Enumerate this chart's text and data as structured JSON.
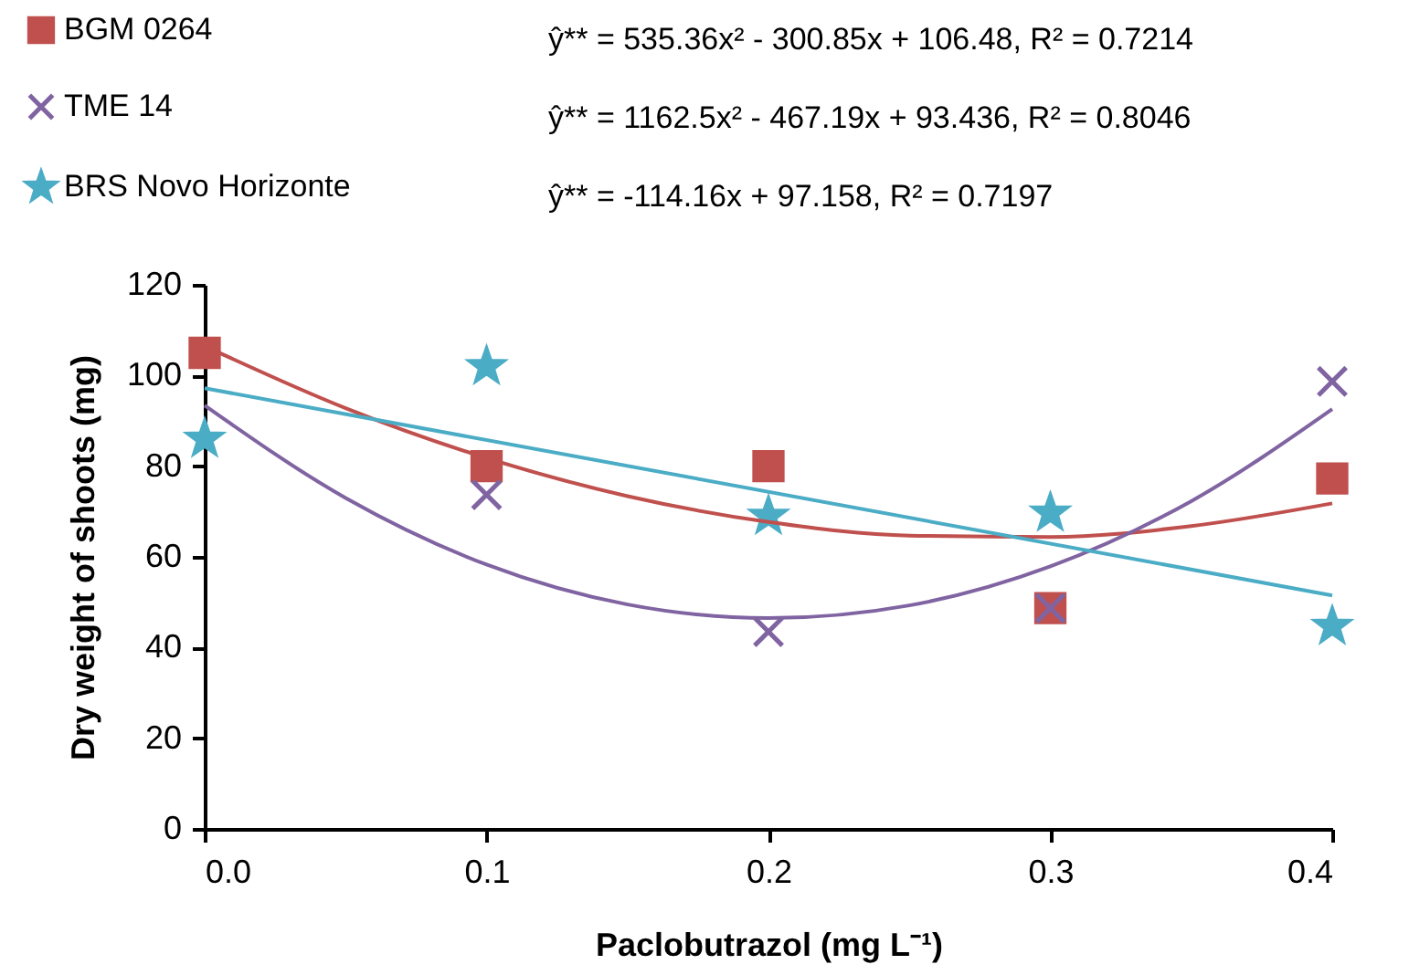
{
  "chart_data": {
    "type": "scatter",
    "xlabel": "Paclobutrazol (mg L⁻¹)",
    "ylabel": "Dry weight of shoots (mg)",
    "x": [
      0,
      0.1,
      0.2,
      0.3,
      0.4
    ],
    "xlim": [
      0,
      0.4
    ],
    "xticks": [
      {
        "value": 0,
        "label": "0.0"
      },
      {
        "value": 0.1,
        "label": "0.1"
      },
      {
        "value": 0.2,
        "label": "0.2"
      },
      {
        "value": 0.3,
        "label": "0.3"
      },
      {
        "value": 0.4,
        "label": "0.4"
      }
    ],
    "ylim": [
      0,
      120
    ],
    "yticks": [
      0,
      20,
      40,
      60,
      80,
      100,
      120
    ],
    "grid": false,
    "legend": "top left",
    "series": [
      {
        "name": "BGM 0264",
        "color": "#c0504d",
        "marker": "square",
        "values": [
          105,
          80,
          80,
          48.7,
          77.3
        ]
      },
      {
        "name": "TME 14",
        "color": "#8064a2",
        "marker": "cross",
        "values": [
          null,
          73.7,
          43.5,
          48.7,
          98.7
        ]
      },
      {
        "name": "BRS Novo Horizonte",
        "color": "#4bacc6",
        "marker": "star",
        "values": [
          86,
          102,
          69,
          69.7,
          44.7
        ]
      },
      {
        "type": "line",
        "color": "#c0504d",
        "x": [
          0,
          0.05,
          0.1,
          0.15,
          0.2,
          0.25,
          0.3,
          0.35,
          0.4
        ],
        "values": [
          106.5,
          92.8,
          81.8,
          73.4,
          67.7,
          64.7,
          64.4,
          66.8,
          71.8
        ]
      },
      {
        "type": "line",
        "color": "#8064a2",
        "x": [
          0,
          0.05,
          0.1,
          0.15,
          0.2,
          0.25,
          0.3,
          0.35,
          0.4
        ],
        "values": [
          93.4,
          73.0,
          58.3,
          49.5,
          46.5,
          49.3,
          57.9,
          72.3,
          92.6
        ]
      },
      {
        "type": "line",
        "color": "#4bacc6",
        "x": [
          0,
          0.4
        ],
        "values": [
          97.2,
          51.5
        ]
      }
    ],
    "annotations": [
      "ŷ** = 535.36x² - 300.85x + 106.48, R² = 0.7214",
      "ŷ** = 1162.5x² - 467.19x + 93.436, R² = 0.8046",
      "ŷ** = -114.16x + 97.158, R² = 0.7197"
    ]
  }
}
